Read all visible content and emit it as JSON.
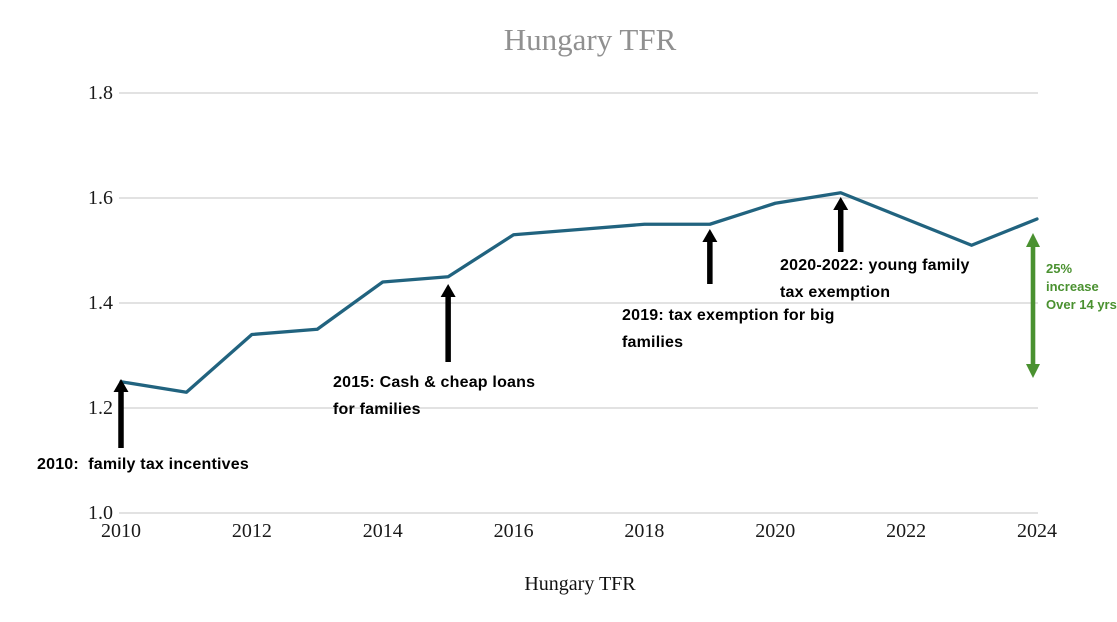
{
  "chart_data": {
    "type": "line",
    "title": "Hungary TFR",
    "series_label": "Hungary TFR",
    "x": [
      2010,
      2011,
      2012,
      2013,
      2014,
      2015,
      2016,
      2017,
      2018,
      2019,
      2020,
      2021,
      2022,
      2023,
      2024
    ],
    "values": [
      1.25,
      1.23,
      1.34,
      1.35,
      1.44,
      1.45,
      1.53,
      1.54,
      1.55,
      1.55,
      1.59,
      1.61,
      1.56,
      1.51,
      1.56
    ],
    "ylim": [
      1.0,
      1.8
    ],
    "xlim": [
      2010,
      2024
    ],
    "grid": true,
    "legend_position": "none",
    "ytick_values": [
      1.0,
      1.2,
      1.4,
      1.6,
      1.8
    ],
    "ytick_labels": [
      "1.0",
      "1.2",
      "1.4",
      "1.6",
      "1.8"
    ],
    "xtick_values": [
      2010,
      2012,
      2014,
      2016,
      2018,
      2020,
      2022,
      2024
    ],
    "xtick_labels": [
      "2010",
      "2012",
      "2014",
      "2016",
      "2018",
      "2020",
      "2022",
      "2024"
    ],
    "annotations": [
      {
        "lines": [
          "2010:  family tax incentives"
        ],
        "arrow_year": 2010,
        "arrow_value": 1.25
      },
      {
        "lines": [
          "2015: Cash & cheap loans",
          "for families"
        ],
        "arrow_year": 2015,
        "arrow_value": 1.45
      },
      {
        "lines": [
          "2019: tax exemption for big",
          "families"
        ],
        "arrow_year": 2019,
        "arrow_value": 1.55
      },
      {
        "lines": [
          "2020-2022: young family",
          "tax exemption"
        ],
        "arrow_year": 2021,
        "arrow_value": 1.61
      }
    ],
    "increase_note": {
      "lines": [
        "25%",
        "increase",
        "Over 14 yrs"
      ],
      "span_years": 14,
      "percent": "25%"
    }
  },
  "colors": {
    "line": "#21637f",
    "grid": "#d9d9d9",
    "title_gray": "#909090",
    "annotation_black": "#000000",
    "note_green": "#4a9130"
  }
}
